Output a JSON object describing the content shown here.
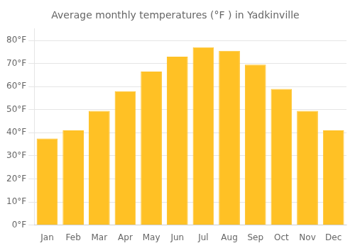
{
  "chart_data": {
    "type": "bar",
    "title": "Average monthly temperatures (°F ) in Yadkinville",
    "categories": [
      "Jan",
      "Feb",
      "Mar",
      "Apr",
      "May",
      "Jun",
      "Jul",
      "Aug",
      "Sep",
      "Oct",
      "Nov",
      "Dec"
    ],
    "values": [
      37.5,
      41.0,
      49.5,
      58.0,
      66.5,
      73.0,
      77.0,
      75.5,
      69.5,
      59.0,
      49.5,
      41.0
    ],
    "color": "#FFC125",
    "ylim": [
      0,
      85
    ],
    "yticks": [
      {
        "value": 0,
        "label": "0°F"
      },
      {
        "value": 10,
        "label": "10°F"
      },
      {
        "value": 20,
        "label": "20°F"
      },
      {
        "value": 30,
        "label": "30°F"
      },
      {
        "value": 40,
        "label": "40°F"
      },
      {
        "value": 50,
        "label": "50°F"
      },
      {
        "value": 60,
        "label": "60°F"
      },
      {
        "value": 70,
        "label": "70°F"
      },
      {
        "value": 80,
        "label": "80°F"
      }
    ],
    "grid": true
  }
}
